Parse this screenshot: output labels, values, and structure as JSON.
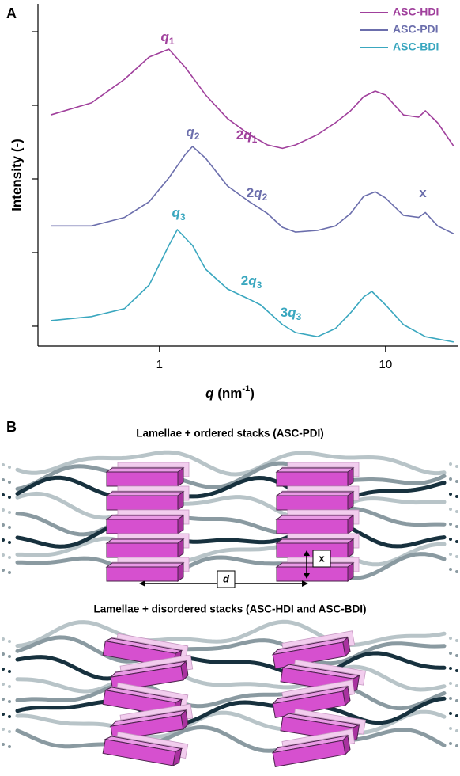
{
  "chart_data": {
    "type": "line",
    "panel_label": "A",
    "ylabel": "Intensity (-)",
    "xlabel": {
      "symbol": "q",
      "unit": " (nm",
      "exponent": "-1",
      "close": ")"
    },
    "xscale": "log",
    "yscale": "log",
    "xlim": [
      0.29,
      21
    ],
    "xticks": [
      1,
      10
    ],
    "ylim": [
      5.38e-05,
      2.38
    ],
    "yticks": [
      0.0001,
      0.001,
      0.01,
      0.1,
      1
    ],
    "legend": "upper right",
    "series": [
      {
        "name": "ASC-HDI",
        "color": "#a0409c",
        "x": [
          0.33,
          0.5,
          0.7,
          0.9,
          1.1,
          1.3,
          1.6,
          2,
          2.5,
          3,
          3.5,
          4,
          5,
          6,
          7,
          8,
          9,
          10,
          12,
          14,
          15,
          17,
          20
        ],
        "values": [
          0.074,
          0.108,
          0.226,
          0.453,
          0.579,
          0.328,
          0.138,
          0.066,
          0.04,
          0.029,
          0.026,
          0.029,
          0.04,
          0.058,
          0.084,
          0.131,
          0.156,
          0.138,
          0.074,
          0.069,
          0.084,
          0.058,
          0.028
        ]
      },
      {
        "name": "ASC-PDI",
        "color": "#6b6eac",
        "x": [
          0.33,
          0.5,
          0.7,
          0.9,
          1.1,
          1.3,
          1.4,
          1.6,
          2,
          2.5,
          3,
          3.5,
          4,
          5,
          6,
          7,
          8,
          9,
          10,
          12,
          14,
          15,
          17,
          20
        ],
        "values": [
          0.0023,
          0.0023,
          0.003,
          0.0049,
          0.0103,
          0.0215,
          0.0276,
          0.0191,
          0.008,
          0.0049,
          0.0034,
          0.0022,
          0.0019,
          0.002,
          0.0023,
          0.0034,
          0.0058,
          0.0067,
          0.0055,
          0.0032,
          0.003,
          0.0035,
          0.0023,
          0.0018
        ]
      },
      {
        "name": "ASC-BDI",
        "color": "#3aa7bf",
        "x": [
          0.33,
          0.5,
          0.7,
          0.9,
          1.1,
          1.2,
          1.4,
          1.6,
          2,
          2.5,
          2.8,
          3.5,
          4,
          5,
          6,
          7,
          8,
          8.7,
          10,
          12,
          15,
          20
        ],
        "values": [
          0.000119,
          0.000135,
          0.000173,
          0.000362,
          0.00125,
          0.00205,
          0.00125,
          0.000594,
          0.00032,
          0.000232,
          0.000195,
          0.000105,
          8.2e-05,
          7.2e-05,
          9.3e-05,
          0.000152,
          0.00025,
          0.000297,
          0.000195,
          0.000105,
          7.2e-05,
          6.1e-05
        ]
      }
    ],
    "annotations": [
      {
        "symbol": "q",
        "index": "1"
      },
      {
        "coef": "2",
        "symbol": "q",
        "index": "1"
      },
      {
        "symbol": "q",
        "index": "2"
      },
      {
        "coef": "2",
        "symbol": "q",
        "index": "2"
      },
      {
        "text": "x"
      },
      {
        "symbol": "q",
        "index": "3"
      },
      {
        "coef": "2",
        "symbol": "q",
        "index": "3"
      },
      {
        "coef": "3",
        "symbol": "q",
        "index": "3"
      }
    ]
  },
  "diagram": {
    "panel_label": "B",
    "structures": [
      {
        "title": "Lamellae + ordered stacks (ASC-PDI)"
      },
      {
        "title": "Lamellae + disordered stacks (ASC-HDI and ASC-BDI)"
      }
    ],
    "d_label": "d",
    "x_label": "x"
  }
}
